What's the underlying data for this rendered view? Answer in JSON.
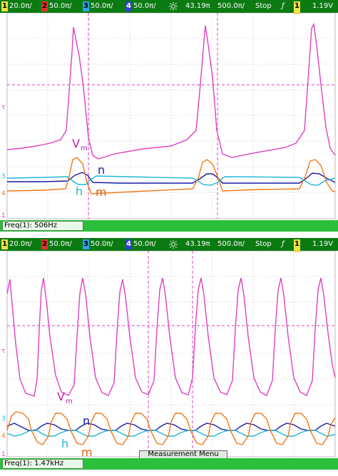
{
  "colors": {
    "vm": "#e040c0",
    "n": "#1a1aa8",
    "h": "#20b8d8",
    "m": "#f07818",
    "status_bg": "#0b7a12",
    "freq_bg": "#2bbf3b",
    "grid": "#c8c8c8"
  },
  "icons": [
    "brightness-icon",
    "trigger-icon"
  ],
  "top": {
    "status": {
      "ch1": {
        "num": "1",
        "value": "20.0π/"
      },
      "ch2": {
        "num": "2",
        "value": "50.0π/"
      },
      "ch3": {
        "num": "3",
        "value": "50.0π/"
      },
      "ch4": {
        "num": "4",
        "value": "50.0π/"
      },
      "intensity": "43.19π",
      "timebase": "500.0π/",
      "run_state": "Stop",
      "trigger_source": "1",
      "trigger_level": "1.19V"
    },
    "labels": {
      "vm": "V",
      "vm_sub": "m",
      "n": "n",
      "h": "h",
      "m": "m"
    },
    "freq": "Freq(1): 506Hz"
  },
  "bottom": {
    "status": {
      "ch1": {
        "num": "1",
        "value": "20.0π/"
      },
      "ch2": {
        "num": "2",
        "value": "50.0π/"
      },
      "ch3": {
        "num": "3",
        "value": "50.0π/"
      },
      "ch4": {
        "num": "4",
        "value": "50.0π/"
      },
      "intensity": "43.19π",
      "timebase": "500.0π/",
      "run_state": "Stop",
      "trigger_source": "1",
      "trigger_level": "1.19V"
    },
    "labels": {
      "vm": "V",
      "vm_sub": "m",
      "n": "n",
      "h": "h",
      "m": "m"
    },
    "freq": "Freq(1): 1.47kHz",
    "measurement_menu": "Measurement Menu"
  }
}
